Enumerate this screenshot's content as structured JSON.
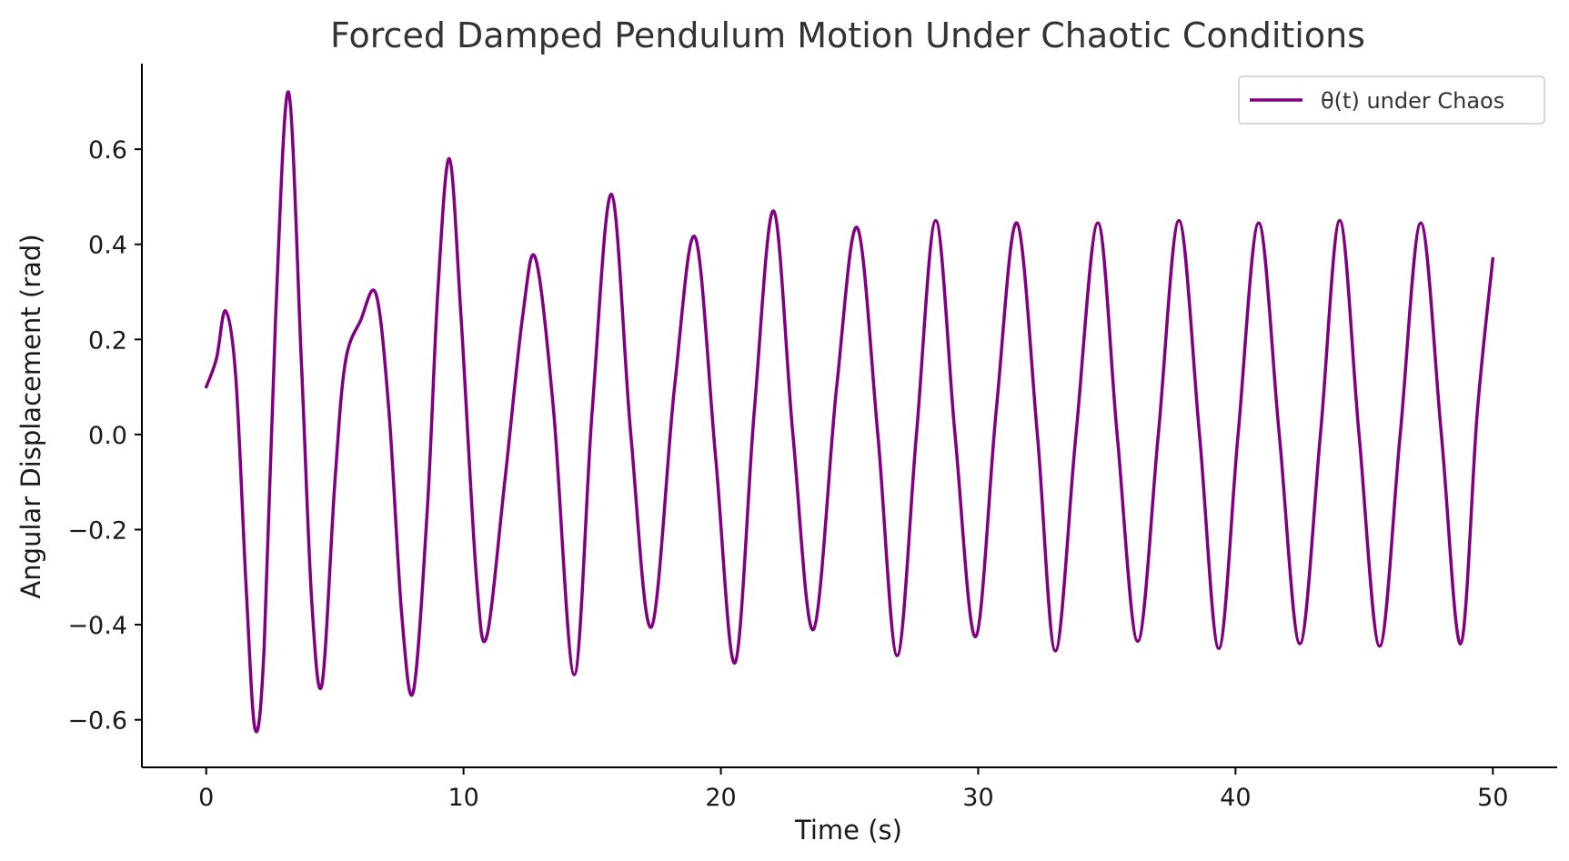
{
  "chart_data": {
    "type": "line",
    "title": "Forced Damped Pendulum Motion Under Chaotic Conditions",
    "xlabel": "Time (s)",
    "ylabel": "Angular Displacement (rad)",
    "xlim": [
      -2.5,
      52.5
    ],
    "ylim": [
      -0.7,
      0.78
    ],
    "xticks": [
      0,
      10,
      20,
      30,
      40,
      50
    ],
    "xtick_labels": [
      "0",
      "10",
      "20",
      "30",
      "40",
      "50"
    ],
    "yticks": [
      -0.6,
      -0.4,
      -0.2,
      0.0,
      0.2,
      0.4,
      0.6
    ],
    "ytick_labels": [
      "−0.6",
      "−0.4",
      "−0.2",
      "0.0",
      "0.2",
      "0.4",
      "0.6"
    ],
    "grid": false,
    "legend": {
      "position": "top-right"
    },
    "series": [
      {
        "name": "θ(t) under Chaos",
        "color": "#800080",
        "points": [
          [
            0.0,
            0.1
          ],
          [
            0.4,
            0.16
          ],
          [
            0.75,
            0.26
          ],
          [
            1.15,
            0.12
          ],
          [
            1.55,
            -0.32
          ],
          [
            1.9,
            -0.62
          ],
          [
            2.25,
            -0.45
          ],
          [
            2.7,
            0.25
          ],
          [
            3.2,
            0.72
          ],
          [
            3.7,
            0.15
          ],
          [
            4.1,
            -0.35
          ],
          [
            4.5,
            -0.525
          ],
          [
            5.0,
            -0.1
          ],
          [
            5.4,
            0.15
          ],
          [
            6.0,
            0.24
          ],
          [
            6.6,
            0.295
          ],
          [
            7.1,
            0.05
          ],
          [
            7.6,
            -0.38
          ],
          [
            8.05,
            -0.54
          ],
          [
            8.6,
            -0.15
          ],
          [
            9.0,
            0.3
          ],
          [
            9.45,
            0.58
          ],
          [
            9.9,
            0.25
          ],
          [
            10.5,
            -0.3
          ],
          [
            10.9,
            -0.425
          ],
          [
            11.6,
            -0.1
          ],
          [
            12.3,
            0.25
          ],
          [
            12.8,
            0.37
          ],
          [
            13.5,
            0.05
          ],
          [
            14.3,
            -0.505
          ],
          [
            15.0,
            0.05
          ],
          [
            15.75,
            0.505
          ],
          [
            16.5,
            0.0
          ],
          [
            17.3,
            -0.405
          ],
          [
            18.2,
            0.1
          ],
          [
            19.0,
            0.415
          ],
          [
            19.8,
            -0.05
          ],
          [
            20.55,
            -0.48
          ],
          [
            21.3,
            0.05
          ],
          [
            22.05,
            0.47
          ],
          [
            22.8,
            0.0
          ],
          [
            23.6,
            -0.41
          ],
          [
            24.5,
            0.1
          ],
          [
            25.3,
            0.435
          ],
          [
            26.1,
            0.0
          ],
          [
            26.85,
            -0.465
          ],
          [
            27.6,
            0.0
          ],
          [
            28.35,
            0.45
          ],
          [
            29.1,
            0.0
          ],
          [
            29.9,
            -0.425
          ],
          [
            30.7,
            0.05
          ],
          [
            31.5,
            0.445
          ],
          [
            32.3,
            0.0
          ],
          [
            33.0,
            -0.455
          ],
          [
            33.8,
            0.0
          ],
          [
            34.65,
            0.445
          ],
          [
            35.4,
            0.0
          ],
          [
            36.2,
            -0.435
          ],
          [
            37.0,
            0.0
          ],
          [
            37.8,
            0.45
          ],
          [
            38.6,
            0.0
          ],
          [
            39.35,
            -0.45
          ],
          [
            40.1,
            0.0
          ],
          [
            40.9,
            0.445
          ],
          [
            41.7,
            0.0
          ],
          [
            42.5,
            -0.44
          ],
          [
            43.3,
            0.0
          ],
          [
            44.05,
            0.45
          ],
          [
            44.8,
            0.0
          ],
          [
            45.6,
            -0.445
          ],
          [
            46.4,
            0.0
          ],
          [
            47.2,
            0.445
          ],
          [
            48.0,
            0.0
          ],
          [
            48.75,
            -0.44
          ],
          [
            49.4,
            0.05
          ],
          [
            50.0,
            0.37
          ]
        ]
      }
    ]
  }
}
